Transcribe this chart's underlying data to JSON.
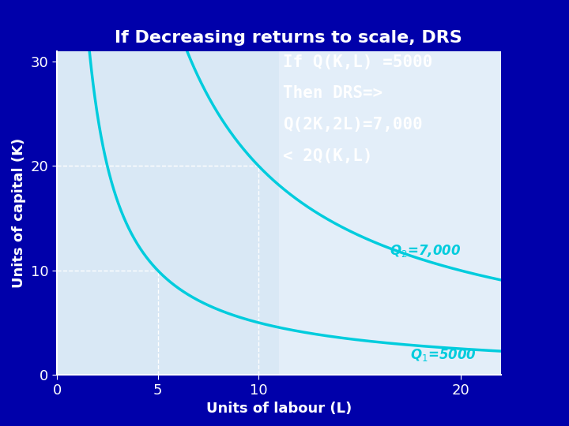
{
  "title": "If Decreasing returns to scale, DRS",
  "xlabel": "Units of labour (L)",
  "ylabel": "Units of capital (K)",
  "xlim": [
    0,
    22
  ],
  "ylim": [
    0,
    31
  ],
  "xticks": [
    0,
    5,
    10,
    20
  ],
  "yticks": [
    0,
    10,
    20,
    30
  ],
  "fig_bg_color": "#0000AA",
  "plot_bg_color": "#00008B",
  "curve_color": "#00CCDD",
  "dashed_line_color": "white",
  "title_color": "white",
  "axis_color": "white",
  "tick_color": "white",
  "label_color": "white",
  "q1_label": "Q$_1$=5000",
  "q2_label": "Q$_2$=7,000",
  "q1_color": "#00CCDD",
  "q2_color": "#00CCDD",
  "annotation_lines": [
    "If Q(K,L) =5000",
    "Then DRS=>",
    "Q(2K,2L)=7,000",
    "< 2Q(K,L)"
  ],
  "annotation_color": "white",
  "annotation_fontsize": 15,
  "q1_const": 50,
  "q2_const": 200
}
